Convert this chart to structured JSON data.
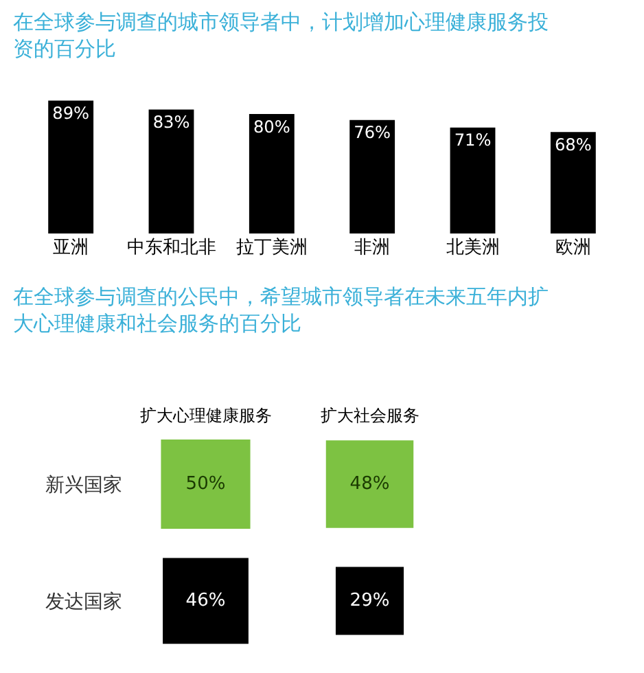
{
  "chart_data": [
    {
      "type": "bar",
      "title": "在全球参与调查的城市领导者中，计划增加心理健康服务投资的百分比",
      "categories": [
        "亚洲",
        "中东和北非",
        "拉丁美洲",
        "非洲",
        "北美洲",
        "欧洲"
      ],
      "values": [
        89,
        83,
        80,
        76,
        71,
        68
      ],
      "value_labels": [
        "89%",
        "83%",
        "80%",
        "76%",
        "71%",
        "68%"
      ],
      "color": "#000000",
      "ylim": [
        0,
        92
      ],
      "tick_labels": "x",
      "legend": false
    },
    {
      "type": "other",
      "title": "在全球参与调查的公民中，希望城市领导者在未来五年内扩大心理健康和社会服务的百分比",
      "categories": [
        "扩大心理健康服务",
        "扩大社会服务"
      ],
      "series": [
        {
          "name": "新兴国家",
          "color": "#7dc242",
          "values": [
            50,
            48
          ],
          "value_labels": [
            "50%",
            "48%"
          ]
        },
        {
          "name": "发达国家",
          "color": "#000000",
          "values": [
            46,
            29
          ],
          "value_labels": [
            "46%",
            "29%"
          ]
        }
      ],
      "legend": false
    }
  ]
}
